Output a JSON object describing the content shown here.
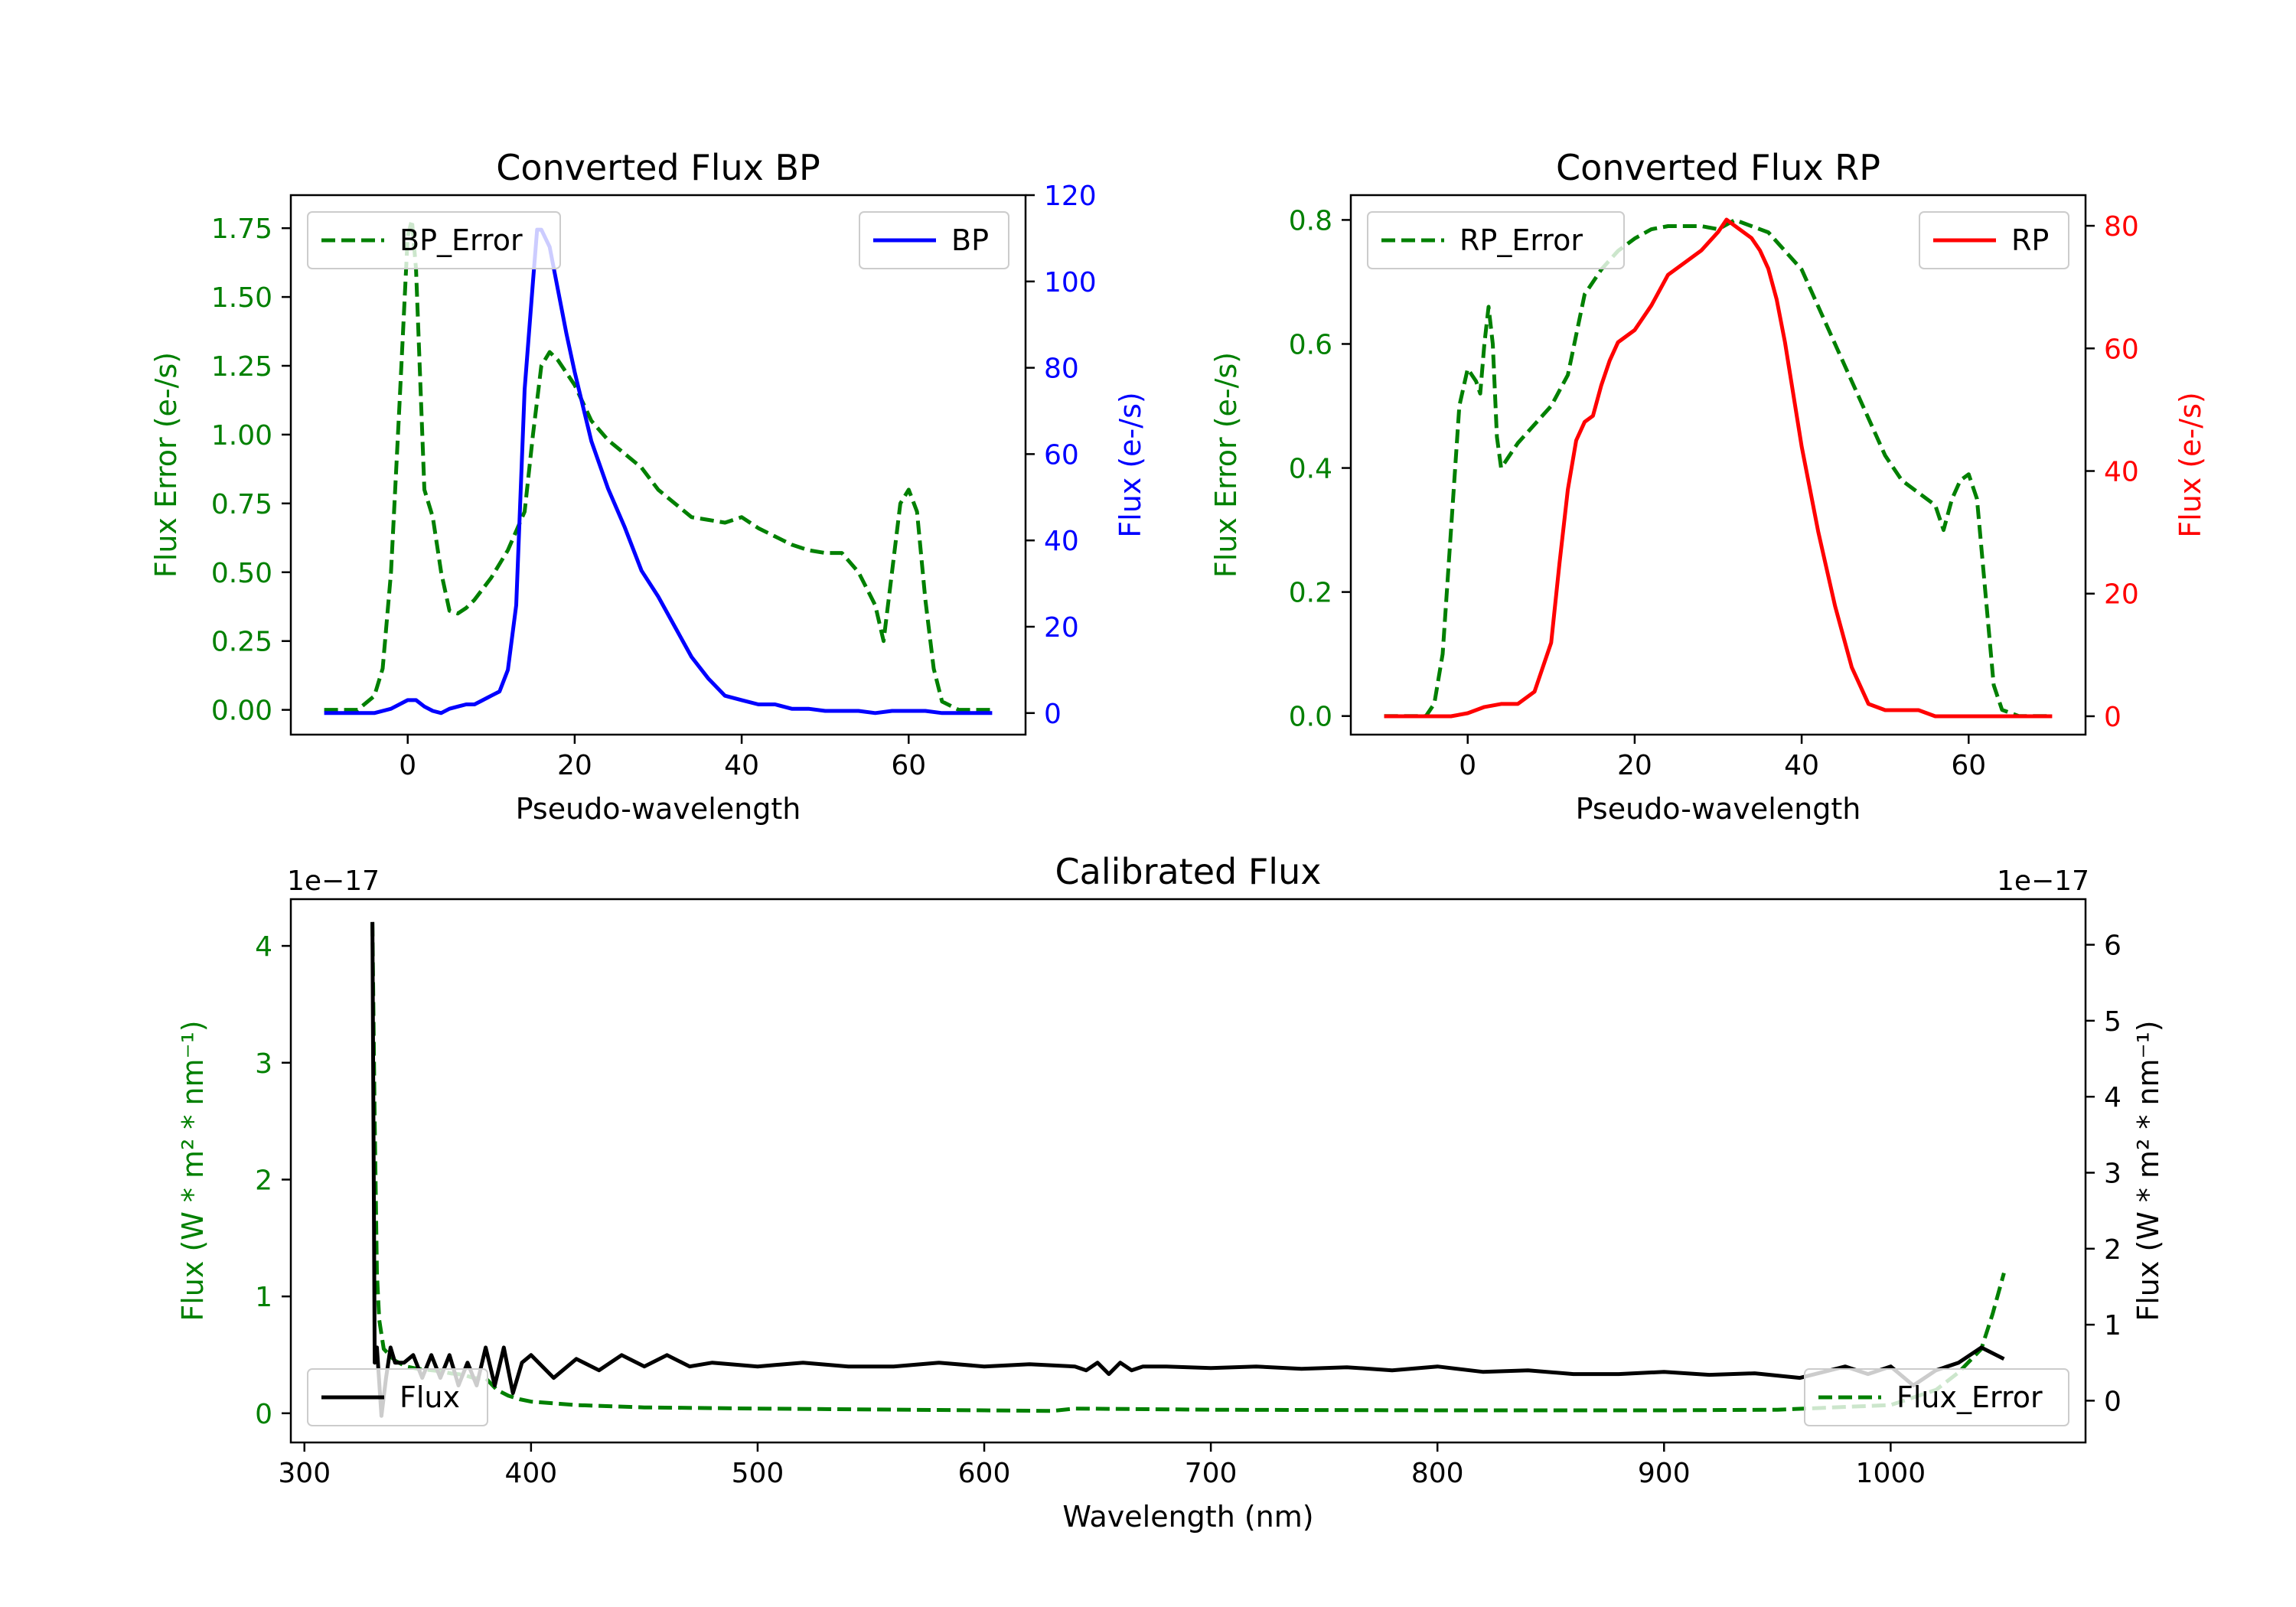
{
  "chart_data": [
    {
      "id": "bp",
      "type": "line",
      "title": "Converted Flux BP",
      "xlabel": "Pseudo-wavelength",
      "xlim": [
        -14,
        74
      ],
      "xticks": [
        0,
        20,
        40,
        60
      ],
      "left_axis": {
        "label": "Flux Error (e-/s)",
        "color": "#008000",
        "ylim": [
          -0.09,
          1.87
        ],
        "ticks": [
          0.0,
          0.25,
          0.5,
          0.75,
          1.0,
          1.25,
          1.5,
          1.75
        ],
        "tick_labels": [
          "0.00",
          "0.25",
          "0.50",
          "0.75",
          "1.00",
          "1.25",
          "1.50",
          "1.75"
        ]
      },
      "right_axis": {
        "label": "Flux (e-/s)",
        "color": "#0000ff",
        "ylim": [
          -5,
          120
        ],
        "ticks": [
          0,
          20,
          40,
          60,
          80,
          100,
          120
        ],
        "tick_labels": [
          "0",
          "20",
          "40",
          "60",
          "80",
          "100",
          "120"
        ]
      },
      "series": [
        {
          "name": "BP_Error",
          "axis": "left",
          "color": "#008000",
          "dash": true,
          "x": [
            -10,
            -6,
            -4,
            -3,
            -2,
            -1,
            0,
            0.5,
            1,
            2,
            3,
            4,
            5,
            6,
            7,
            8,
            10,
            12,
            14,
            15,
            16,
            17,
            18,
            20,
            22,
            24,
            26,
            28,
            30,
            32,
            34,
            36,
            38,
            40,
            42,
            44,
            46,
            48,
            50,
            52,
            54,
            56,
            57,
            58,
            59,
            60,
            61,
            62,
            63,
            64,
            66,
            70
          ],
          "y": [
            0,
            0,
            0.05,
            0.15,
            0.5,
            1.1,
            1.72,
            1.78,
            1.6,
            0.8,
            0.7,
            0.5,
            0.36,
            0.35,
            0.37,
            0.4,
            0.48,
            0.58,
            0.72,
            1.0,
            1.25,
            1.3,
            1.27,
            1.18,
            1.05,
            0.98,
            0.93,
            0.88,
            0.8,
            0.75,
            0.7,
            0.69,
            0.68,
            0.7,
            0.66,
            0.63,
            0.6,
            0.58,
            0.57,
            0.57,
            0.5,
            0.38,
            0.25,
            0.5,
            0.75,
            0.8,
            0.72,
            0.4,
            0.15,
            0.03,
            0,
            0
          ]
        },
        {
          "name": "BP",
          "axis": "right",
          "color": "#0000ff",
          "dash": false,
          "x": [
            -10,
            -4,
            -2,
            0,
            1,
            2,
            3,
            4,
            5,
            6,
            7,
            8,
            9,
            10,
            11,
            12,
            13,
            14,
            15,
            15.5,
            16,
            17,
            18,
            19,
            20,
            22,
            24,
            26,
            28,
            30,
            32,
            34,
            36,
            38,
            40,
            42,
            44,
            46,
            48,
            50,
            52,
            54,
            56,
            58,
            60,
            62,
            64,
            66,
            70
          ],
          "y": [
            0,
            0,
            1,
            3,
            3,
            1.5,
            0.5,
            0,
            1,
            1.5,
            2,
            2,
            3,
            4,
            5,
            10,
            25,
            75,
            100,
            112,
            112,
            108,
            98,
            88,
            79,
            63,
            52,
            43,
            33,
            27,
            20,
            13,
            8,
            4,
            3,
            2,
            2,
            1,
            1,
            0.5,
            0.5,
            0.5,
            0,
            0.5,
            0.5,
            0.5,
            0,
            0,
            0
          ]
        }
      ],
      "legend": [
        "BP_Error",
        "BP"
      ]
    },
    {
      "id": "rp",
      "type": "line",
      "title": "Converted Flux RP",
      "xlabel": "Pseudo-wavelength",
      "xlim": [
        -14,
        74
      ],
      "xticks": [
        0,
        20,
        40,
        60
      ],
      "left_axis": {
        "label": "Flux Error (e-/s)",
        "color": "#008000",
        "ylim": [
          -0.03,
          0.84
        ],
        "ticks": [
          0.0,
          0.2,
          0.4,
          0.6,
          0.8
        ],
        "tick_labels": [
          "0.0",
          "0.2",
          "0.4",
          "0.6",
          "0.8"
        ]
      },
      "right_axis": {
        "label": "Flux (e-/s)",
        "color": "#ff0000",
        "ylim": [
          -3,
          85
        ],
        "ticks": [
          0,
          20,
          40,
          60,
          80
        ],
        "tick_labels": [
          "0",
          "20",
          "40",
          "60",
          "80"
        ]
      },
      "series": [
        {
          "name": "RP_Error",
          "axis": "left",
          "color": "#008000",
          "dash": true,
          "x": [
            -10,
            -5,
            -4,
            -3,
            -2,
            -1,
            0,
            1,
            1.5,
            2,
            2.5,
            3,
            3.5,
            4,
            5,
            6,
            8,
            10,
            12,
            14,
            16,
            18,
            20,
            22,
            24,
            26,
            28,
            30,
            32,
            34,
            36,
            38,
            40,
            42,
            44,
            46,
            48,
            50,
            52,
            54,
            56,
            57,
            58,
            59,
            60,
            61,
            62,
            63,
            64,
            66,
            70
          ],
          "y": [
            0,
            0,
            0.02,
            0.1,
            0.3,
            0.5,
            0.56,
            0.54,
            0.52,
            0.6,
            0.66,
            0.6,
            0.45,
            0.4,
            0.42,
            0.44,
            0.47,
            0.5,
            0.55,
            0.68,
            0.72,
            0.75,
            0.77,
            0.785,
            0.79,
            0.79,
            0.79,
            0.785,
            0.8,
            0.79,
            0.78,
            0.75,
            0.72,
            0.66,
            0.6,
            0.54,
            0.48,
            0.42,
            0.38,
            0.36,
            0.34,
            0.3,
            0.35,
            0.38,
            0.39,
            0.35,
            0.2,
            0.05,
            0.01,
            0,
            0
          ]
        },
        {
          "name": "RP",
          "axis": "right",
          "color": "#ff0000",
          "dash": false,
          "x": [
            -10,
            -2,
            0,
            2,
            4,
            6,
            8,
            10,
            11,
            12,
            13,
            14,
            15,
            16,
            17,
            18,
            20,
            22,
            24,
            26,
            28,
            30,
            31,
            32,
            33,
            34,
            35,
            36,
            37,
            38,
            40,
            42,
            44,
            46,
            48,
            50,
            52,
            54,
            56,
            58,
            60,
            62,
            64,
            66,
            70
          ],
          "y": [
            0,
            0,
            0.5,
            1.5,
            2,
            2,
            4,
            12,
            25,
            37,
            45,
            48,
            49,
            54,
            58,
            61,
            63,
            67,
            72,
            74,
            76,
            79,
            81,
            80,
            79,
            78,
            76,
            73,
            68,
            61,
            44,
            30,
            18,
            8,
            2,
            1,
            1,
            1,
            0,
            0,
            0,
            0,
            0,
            0,
            0
          ]
        }
      ],
      "legend": [
        "RP_Error",
        "RP"
      ]
    },
    {
      "id": "cal",
      "type": "line",
      "title": "Calibrated Flux",
      "xlabel": "Wavelength (nm)",
      "xlim": [
        294,
        1086
      ],
      "xticks": [
        300,
        400,
        500,
        600,
        700,
        800,
        900,
        1000
      ],
      "left_axis": {
        "label": "Flux (W * m² * nm⁻¹)",
        "color": "#008000",
        "ylim": [
          -0.25,
          4.4
        ],
        "ticks": [
          0,
          1,
          2,
          3,
          4
        ],
        "tick_labels": [
          "0",
          "1",
          "2",
          "3",
          "4"
        ],
        "offset": "1e−17"
      },
      "right_axis": {
        "label": "Flux (W * m² * nm⁻¹)",
        "color": "#000000",
        "ylim": [
          -0.55,
          6.6
        ],
        "ticks": [
          0,
          1,
          2,
          3,
          4,
          5,
          6
        ],
        "tick_labels": [
          "0",
          "1",
          "2",
          "3",
          "4",
          "5",
          "6"
        ],
        "offset": "1e−17"
      },
      "series": [
        {
          "name": "Flux_Error",
          "axis": "left",
          "color": "#008000",
          "dash": true,
          "x": [
            330,
            331,
            332,
            333,
            335,
            340,
            345,
            350,
            355,
            360,
            365,
            370,
            375,
            380,
            385,
            390,
            395,
            400,
            420,
            450,
            500,
            600,
            630,
            640,
            700,
            800,
            900,
            950,
            1000,
            1020,
            1030,
            1040,
            1045,
            1050
          ],
          "y": [
            4.2,
            2.5,
            1.2,
            0.8,
            0.55,
            0.45,
            0.4,
            0.38,
            0.37,
            0.36,
            0.34,
            0.33,
            0.3,
            0.3,
            0.2,
            0.15,
            0.12,
            0.1,
            0.07,
            0.05,
            0.04,
            0.025,
            0.02,
            0.04,
            0.03,
            0.025,
            0.025,
            0.03,
            0.07,
            0.2,
            0.35,
            0.55,
            0.85,
            1.2
          ]
        },
        {
          "name": "Flux",
          "axis": "right",
          "color": "#000000",
          "dash": false,
          "x": [
            330,
            331,
            332,
            334,
            336,
            338,
            340,
            344,
            348,
            352,
            356,
            360,
            364,
            368,
            372,
            376,
            380,
            384,
            388,
            392,
            396,
            400,
            410,
            420,
            430,
            440,
            450,
            460,
            470,
            480,
            500,
            520,
            540,
            560,
            580,
            600,
            620,
            640,
            645,
            650,
            655,
            660,
            665,
            670,
            680,
            700,
            720,
            740,
            760,
            780,
            800,
            820,
            840,
            860,
            880,
            900,
            920,
            940,
            960,
            980,
            990,
            1000,
            1010,
            1020,
            1030,
            1040,
            1050
          ],
          "y": [
            6.3,
            0.5,
            0.7,
            -0.2,
            0.3,
            0.7,
            0.5,
            0.5,
            0.6,
            0.3,
            0.6,
            0.3,
            0.6,
            0.2,
            0.5,
            0.2,
            0.7,
            0.2,
            0.7,
            0.1,
            0.5,
            0.6,
            0.3,
            0.55,
            0.4,
            0.6,
            0.45,
            0.6,
            0.45,
            0.5,
            0.45,
            0.5,
            0.45,
            0.45,
            0.5,
            0.45,
            0.48,
            0.45,
            0.4,
            0.5,
            0.35,
            0.5,
            0.4,
            0.45,
            0.45,
            0.43,
            0.45,
            0.42,
            0.44,
            0.4,
            0.45,
            0.38,
            0.4,
            0.35,
            0.35,
            0.38,
            0.34,
            0.36,
            0.3,
            0.45,
            0.35,
            0.45,
            0.2,
            0.4,
            0.5,
            0.7,
            0.55
          ]
        }
      ],
      "legend": [
        "Flux",
        "Flux_Error"
      ]
    }
  ]
}
